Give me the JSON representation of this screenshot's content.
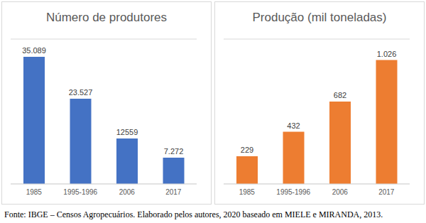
{
  "chart_data": [
    {
      "type": "bar",
      "title": "Número de produtores",
      "categories": [
        "1985",
        "1995-1996",
        "2006",
        "2017"
      ],
      "values": [
        35089,
        23527,
        12559,
        7272
      ],
      "value_labels": [
        "35.089",
        "23.527",
        "12559",
        "7.272"
      ],
      "color": "#4472c4",
      "ylim": [
        0,
        40000
      ],
      "yticks": [
        0,
        5000,
        10000,
        15000,
        20000,
        25000,
        30000,
        35000,
        40000
      ],
      "grid": true,
      "data_labels": true,
      "tick_labels": "x"
    },
    {
      "type": "bar",
      "title": "Produção (mil toneladas)",
      "categories": [
        "1985",
        "1995-1996",
        "2006",
        "2017"
      ],
      "values": [
        229,
        432,
        682,
        1026
      ],
      "value_labels": [
        "229",
        "432",
        "682",
        "1.026"
      ],
      "color": "#ed7d31",
      "ylim": [
        0,
        1200
      ],
      "yticks": [
        0,
        200,
        400,
        600,
        800,
        1000,
        1200
      ],
      "grid": true,
      "data_labels": true,
      "tick_labels": "x"
    }
  ],
  "source": "Fonte: IBGE – Censos Agropecuários. Elaborado pelos autores, 2020 baseado em MIELE e MIRANDA, 2013."
}
